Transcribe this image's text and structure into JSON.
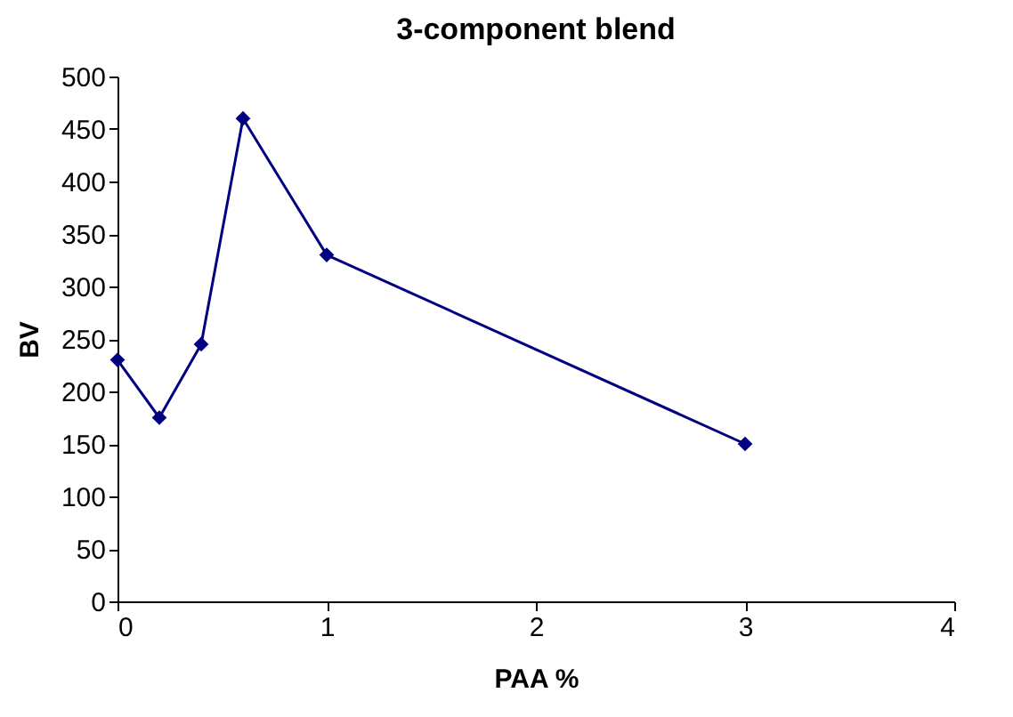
{
  "chart_data": {
    "type": "line",
    "title": "3-component blend",
    "xlabel": "PAA %",
    "ylabel": "BV",
    "x": [
      0,
      0.2,
      0.4,
      0.6,
      1,
      3
    ],
    "series": [
      {
        "color": "#000080",
        "values": [
          230,
          175,
          245,
          460,
          330,
          150
        ]
      }
    ],
    "xlim": [
      0,
      4
    ],
    "xticks": [
      0,
      1,
      2,
      3,
      4
    ],
    "ylim": [
      0,
      500
    ],
    "yticks": [
      0,
      50,
      100,
      150,
      200,
      250,
      300,
      350,
      400,
      450,
      500
    ],
    "grid": false,
    "legend": false,
    "marker": "diamond",
    "line_style": "solid"
  }
}
